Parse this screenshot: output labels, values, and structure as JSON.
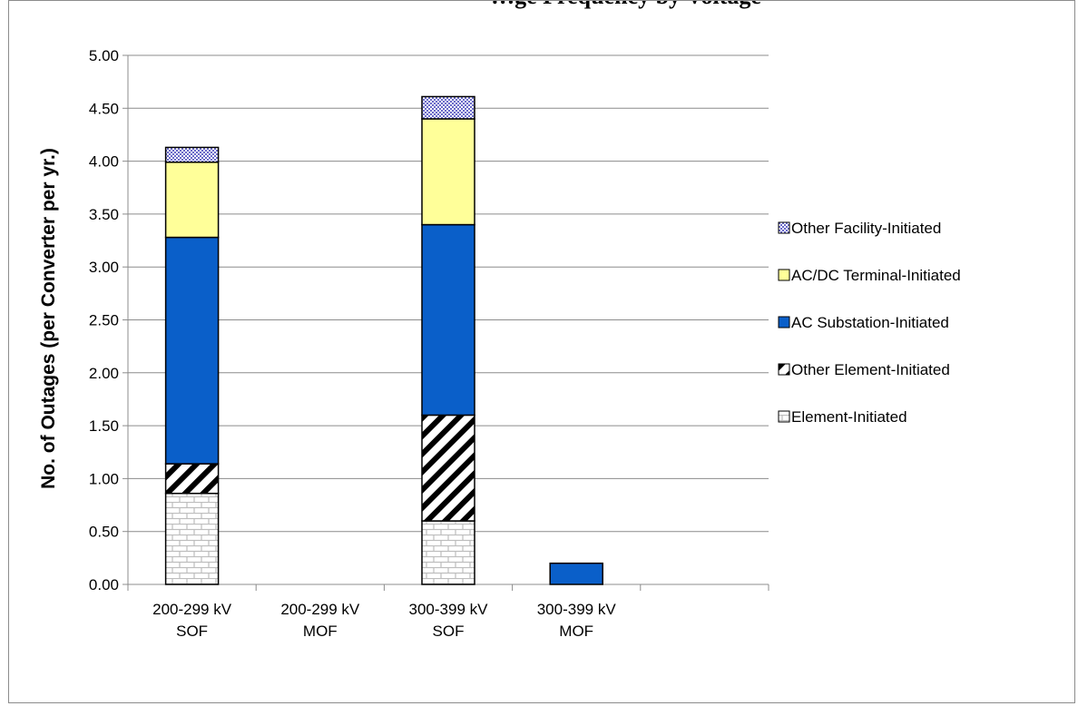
{
  "chart_data": {
    "type": "bar",
    "stacked": true,
    "title": "…ge Frequency by Voltage",
    "ylabel": "No. of Outages (per Converter per yr.)",
    "xlabel": "",
    "ylim": [
      0,
      5
    ],
    "yticks": [
      "0.00",
      "0.50",
      "1.00",
      "1.50",
      "2.00",
      "2.50",
      "3.00",
      "3.50",
      "4.00",
      "4.50",
      "5.00"
    ],
    "grid": true,
    "legend_position": "right",
    "categories": [
      {
        "line1": "200-299 kV",
        "line2": "SOF"
      },
      {
        "line1": "200-299 kV",
        "line2": "MOF"
      },
      {
        "line1": "300-399 kV",
        "line2": "SOF"
      },
      {
        "line1": "300-399 kV",
        "line2": "MOF"
      },
      {
        "line1": "",
        "line2": ""
      }
    ],
    "series": [
      {
        "name": "Element-Initiated",
        "pattern": "brick",
        "color": "#c8c8c8",
        "values": [
          0.86,
          0,
          0.6,
          0,
          0
        ]
      },
      {
        "name": "Other Element-Initiated",
        "pattern": "diagonal",
        "color": "#000000",
        "values": [
          0.28,
          0,
          1.0,
          0,
          0
        ]
      },
      {
        "name": "AC Substation-Initiated",
        "pattern": "solid",
        "color": "#0a5fc9",
        "values": [
          2.14,
          0,
          1.8,
          0.2,
          0
        ]
      },
      {
        "name": "AC/DC Terminal-Initiated",
        "pattern": "solid",
        "color": "#ffff99",
        "values": [
          0.71,
          0,
          1.0,
          0,
          0
        ]
      },
      {
        "name": "Other Facility-Initiated",
        "pattern": "dots",
        "color": "#9898d8",
        "values": [
          0.14,
          0,
          0.21,
          0,
          0
        ]
      }
    ]
  }
}
